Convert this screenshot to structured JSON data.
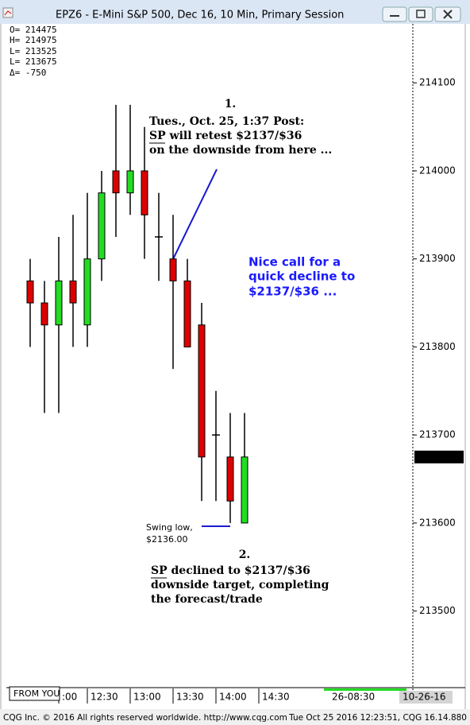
{
  "chart_data": {
    "type": "candlestick",
    "title": "EPZ6 - E-Mini S&P 500, Dec 16, 10 Min, Primary Session",
    "info": [
      "O= 214475",
      "H= 214975",
      "L= 213525",
      "L= 213675",
      "Δ=    -750"
    ],
    "categories": [
      null,
      null,
      null,
      null,
      null,
      null,
      null,
      null,
      null,
      null,
      null,
      null,
      null,
      null,
      null,
      null
    ],
    "open": [
      213875,
      213850,
      213825,
      213875,
      213825,
      213900,
      214000,
      213975,
      214000,
      213925,
      213900,
      213875,
      213825,
      213700,
      213675,
      213600
    ],
    "high": [
      213900,
      213875,
      213925,
      213950,
      213975,
      214000,
      214075,
      214075,
      214050,
      213975,
      213950,
      213900,
      213850,
      213750,
      213725,
      213725
    ],
    "low": [
      213800,
      213725,
      213725,
      213800,
      213800,
      213875,
      213925,
      213950,
      213900,
      213875,
      213775,
      213800,
      213625,
      213625,
      213600,
      213600
    ],
    "close": [
      213850,
      213825,
      213875,
      213850,
      213900,
      213975,
      213975,
      214000,
      213950,
      213925,
      213875,
      213800,
      213675,
      213700,
      213625,
      213675
    ],
    "up_color": "#22dd22",
    "down_color": "#dd0000",
    "last_price": 213675,
    "ylim": [
      213413,
      214167
    ],
    "yticks": [
      213500,
      213600,
      213700,
      213800,
      213900,
      214000,
      214100
    ],
    "xticks": [
      {
        "value": 2,
        "label": ":00"
      },
      {
        "value": 4,
        "label": "12:30"
      },
      {
        "value": 7,
        "label": "13:00"
      },
      {
        "value": 10,
        "label": "13:30"
      },
      {
        "value": 13,
        "label": "14:00"
      },
      {
        "value": 16,
        "label": "14:30"
      }
    ],
    "annotations": {
      "first_number": "1.",
      "first_note": [
        "Tues., Oct. 25, 1:37 Post:",
        "SP will retest $2137/$36",
        "on the downside from here ..."
      ],
      "comment": [
        "Nice call for a",
        "quick decline to",
        "$2137/$36 ..."
      ],
      "swing_low": [
        "Swing low,",
        "$2136.00"
      ],
      "second_number": "2.",
      "second_note": [
        "SP declined to $2137/$36",
        "downside target, completing",
        "the forecast/trade"
      ]
    },
    "from_you": "FROM YOU",
    "axis_extra": [
      "26-08:30",
      "10-26-16"
    ],
    "footer_left": "CQG Inc. © 2016 All rights reserved worldwide. http://www.cqg.com",
    "footer_right": "Tue Oct 25 2016 12:23:51, CQG 16.14.880"
  }
}
